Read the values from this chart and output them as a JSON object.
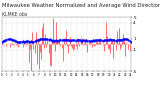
{
  "title": "Milwaukee Weather Normalized and Average Wind Direction (Last 24 Hours)",
  "subtitle": "KLMKE obs",
  "n_points": 120,
  "y_min": -5,
  "y_max": 5,
  "bar_color": "#FF0000",
  "dot_color": "#0000FF",
  "bg_color": "#FFFFFF",
  "grid_color": "#BBBBBB",
  "title_fontsize": 3.8,
  "tick_fontsize": 3.0,
  "seed": 7
}
